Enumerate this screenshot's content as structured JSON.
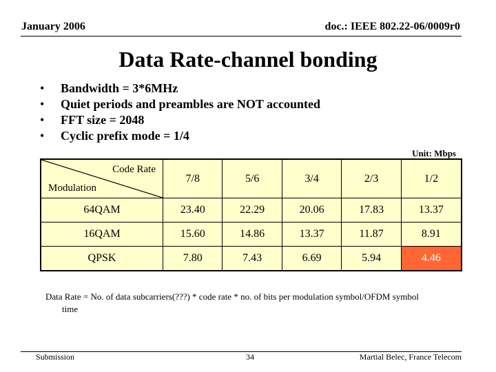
{
  "header": {
    "date": "January 2006",
    "doc_id": "doc.: IEEE 802.22-06/0009r0"
  },
  "title": "Data Rate-channel bonding",
  "bullets": [
    "Bandwidth = 3*6MHz",
    "Quiet periods and preambles are NOT accounted",
    "FFT size = 2048",
    "Cyclic prefix mode = 1/4"
  ],
  "bullet_glyph": "•",
  "unit_label": "Unit: Mbps",
  "table": {
    "corner_top": "Code Rate",
    "corner_bottom": "Modulation",
    "code_rates": [
      "7/8",
      "5/6",
      "3/4",
      "2/3",
      "1/2"
    ],
    "rows": [
      {
        "modulation": "64QAM",
        "values": [
          "23.40",
          "22.29",
          "20.06",
          "17.83",
          "13.37"
        ]
      },
      {
        "modulation": "16QAM",
        "values": [
          "15.60",
          "14.86",
          "13.37",
          "11.87",
          "8.91"
        ]
      },
      {
        "modulation": "QPSK",
        "values": [
          "7.80",
          "7.43",
          "6.69",
          "5.94",
          "4.46"
        ]
      }
    ],
    "highlight_color": "#ff6633",
    "fill_color": "#ffffcc"
  },
  "footnote": {
    "line1": "Data Rate = No. of data subcarriers(???) * code rate * no. of bits per modulation symbol/OFDM symbol",
    "line2": "time"
  },
  "footer": {
    "left": "Submission",
    "page": "34",
    "author": "Martial Belec, France Telecom"
  }
}
